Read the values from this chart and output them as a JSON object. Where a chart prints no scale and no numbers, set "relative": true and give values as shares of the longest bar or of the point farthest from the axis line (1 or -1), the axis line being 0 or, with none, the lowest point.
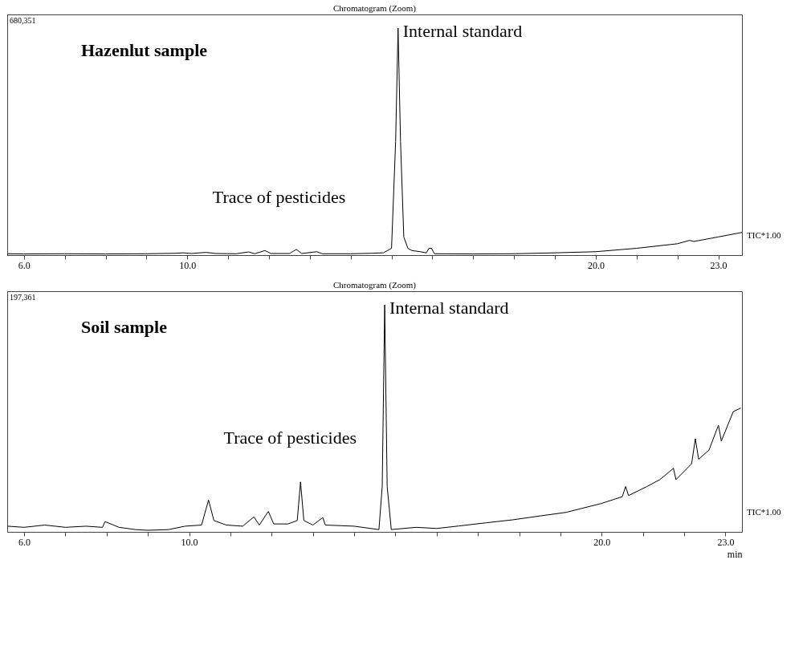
{
  "chart_data": [
    {
      "type": "line",
      "title": "Chromatogram (Zoom)",
      "relative": true,
      "grid": false,
      "legend": false,
      "marker": "none",
      "line_style": "solid",
      "xlim": [
        5.59,
        23.58
      ],
      "xticks": [
        {
          "value": 6,
          "label": "6.0"
        },
        {
          "value": 7,
          "label": null
        },
        {
          "value": 8,
          "label": null
        },
        {
          "value": 9,
          "label": null
        },
        {
          "value": 10,
          "label": "10.0"
        },
        {
          "value": 11,
          "label": null
        },
        {
          "value": 12,
          "label": null
        },
        {
          "value": 13,
          "label": null
        },
        {
          "value": 14,
          "label": null
        },
        {
          "value": 15,
          "label": null
        },
        {
          "value": 16,
          "label": null
        },
        {
          "value": 17,
          "label": null
        },
        {
          "value": 18,
          "label": null
        },
        {
          "value": 19,
          "label": null
        },
        {
          "value": 20,
          "label": "20.0"
        },
        {
          "value": 21,
          "label": null
        },
        {
          "value": 22,
          "label": null
        },
        {
          "value": 23,
          "label": "23.0"
        }
      ],
      "series": [
        {
          "color": "#000000",
          "x": [
            5.6,
            6.0,
            7.0,
            8.0,
            9.0,
            9.7,
            9.9,
            10.1,
            10.45,
            10.7,
            11.2,
            11.5,
            11.65,
            11.9,
            12.05,
            12.5,
            12.67,
            12.8,
            13.17,
            13.3,
            14.0,
            14.5,
            14.8,
            15.0,
            15.1,
            15.16,
            15.22,
            15.3,
            15.4,
            15.5,
            15.7,
            15.85,
            15.92,
            15.98,
            16.05,
            17.0,
            18.0,
            19.0,
            20.0,
            21.0,
            22.0,
            22.3,
            22.4,
            23.0,
            23.58
          ],
          "values": [
            0.006,
            0.005,
            0.006,
            0.005,
            0.006,
            0.008,
            0.01,
            0.007,
            0.012,
            0.007,
            0.006,
            0.014,
            0.006,
            0.02,
            0.007,
            0.007,
            0.025,
            0.007,
            0.015,
            0.006,
            0.006,
            0.008,
            0.01,
            0.03,
            0.5,
            1.0,
            0.5,
            0.08,
            0.03,
            0.02,
            0.015,
            0.01,
            0.03,
            0.03,
            0.006,
            0.005,
            0.006,
            0.01,
            0.015,
            0.03,
            0.05,
            0.065,
            0.06,
            0.08,
            0.1
          ]
        }
      ],
      "annotations": [
        "680,351",
        "Hazenlut sample",
        "TIC*1.00",
        {
          "text": "Internal standard",
          "x": 15.16,
          "y": 1.0
        },
        "Trace of pesticides"
      ]
    },
    {
      "type": "line",
      "title": "Chromatogram (Zoom)",
      "xlabel": "min",
      "relative": true,
      "grid": false,
      "legend": false,
      "marker": "none",
      "line_style": "solid",
      "xlim": [
        5.59,
        23.4
      ],
      "xticks": [
        {
          "value": 6,
          "label": "6.0"
        },
        {
          "value": 7,
          "label": null
        },
        {
          "value": 8,
          "label": null
        },
        {
          "value": 9,
          "label": null
        },
        {
          "value": 10,
          "label": "10.0"
        },
        {
          "value": 11,
          "label": null
        },
        {
          "value": 12,
          "label": null
        },
        {
          "value": 13,
          "label": null
        },
        {
          "value": 14,
          "label": null
        },
        {
          "value": 15,
          "label": null
        },
        {
          "value": 16,
          "label": null
        },
        {
          "value": 17,
          "label": null
        },
        {
          "value": 18,
          "label": null
        },
        {
          "value": 19,
          "label": null
        },
        {
          "value": 20,
          "label": "20.0"
        },
        {
          "value": 21,
          "label": null
        },
        {
          "value": 22,
          "label": null
        },
        {
          "value": 23,
          "label": "23.0"
        }
      ],
      "series": [
        {
          "color": "#000000",
          "x": [
            5.6,
            6.0,
            6.5,
            7.0,
            7.5,
            7.9,
            7.96,
            8.1,
            8.3,
            8.7,
            9.0,
            9.5,
            9.9,
            10.3,
            10.47,
            10.6,
            10.9,
            11.3,
            11.57,
            11.7,
            11.92,
            12.05,
            12.4,
            12.62,
            12.7,
            12.78,
            13.0,
            13.24,
            13.3,
            14.0,
            14.6,
            14.68,
            14.74,
            14.8,
            14.9,
            15.5,
            16.0,
            16.54,
            17.2,
            17.84,
            18.5,
            19.14,
            19.99,
            20.5,
            20.58,
            20.65,
            21.1,
            21.41,
            21.74,
            21.8,
            22.18,
            22.27,
            22.35,
            22.6,
            22.83,
            22.9,
            23.19,
            23.37
          ],
          "values": [
            0.025,
            0.02,
            0.03,
            0.02,
            0.025,
            0.02,
            0.045,
            0.035,
            0.02,
            0.01,
            0.007,
            0.01,
            0.025,
            0.03,
            0.14,
            0.05,
            0.03,
            0.025,
            0.066,
            0.03,
            0.09,
            0.035,
            0.035,
            0.05,
            0.22,
            0.05,
            0.03,
            0.063,
            0.03,
            0.025,
            0.01,
            0.2,
            1.0,
            0.2,
            0.01,
            0.02,
            0.015,
            0.026,
            0.04,
            0.053,
            0.07,
            0.086,
            0.125,
            0.155,
            0.2,
            0.16,
            0.2,
            0.23,
            0.28,
            0.23,
            0.3,
            0.41,
            0.32,
            0.36,
            0.47,
            0.4,
            0.53,
            0.545
          ]
        }
      ],
      "annotations": [
        "197,361",
        "Soil sample",
        "TIC*1.00",
        {
          "text": "Internal standard",
          "x": 14.74,
          "y": 1.0
        },
        "Trace of pesticides"
      ]
    }
  ]
}
